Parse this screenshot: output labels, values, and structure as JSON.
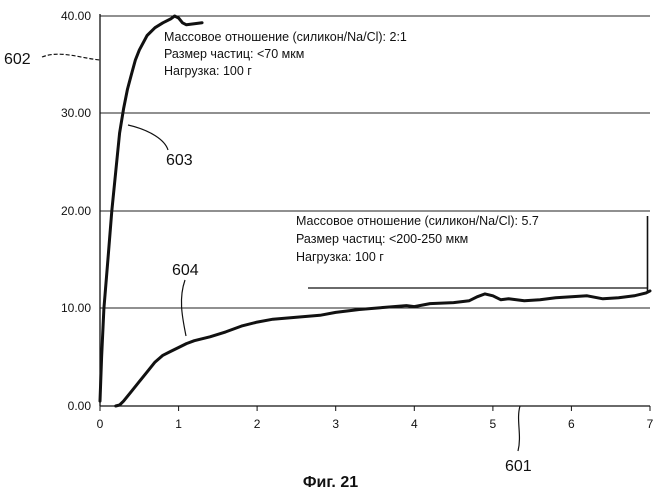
{
  "figure": {
    "caption": "Фиг. 21"
  },
  "chart_data": {
    "type": "line",
    "x_ticks": [
      "0",
      "1",
      "2",
      "3",
      "4",
      "5",
      "6",
      "7"
    ],
    "y_ticks": [
      "0.00",
      "10.00",
      "20.00",
      "30.00",
      "40.00"
    ],
    "xlim": [
      0,
      7
    ],
    "ylim": [
      0,
      40
    ],
    "grid": "horizontal",
    "legend": "none",
    "series": [
      {
        "ref": "602",
        "color": "#111111",
        "x": [
          0.0,
          0.02,
          0.05,
          0.1,
          0.15,
          0.2,
          0.25,
          0.3,
          0.35,
          0.4,
          0.45,
          0.5,
          0.6,
          0.7,
          0.8,
          0.9,
          0.95,
          1.0,
          1.05,
          1.1,
          1.2,
          1.3
        ],
        "y": [
          0.5,
          5,
          10,
          15,
          20,
          24,
          28,
          30.5,
          32.5,
          34,
          35.5,
          36.5,
          38,
          38.8,
          39.3,
          39.7,
          40,
          39.8,
          39.3,
          39.1,
          39.2,
          39.3
        ]
      },
      {
        "ref": "601",
        "color": "#111111",
        "x": [
          0.2,
          0.25,
          0.3,
          0.4,
          0.5,
          0.6,
          0.7,
          0.8,
          0.9,
          1.0,
          1.1,
          1.2,
          1.4,
          1.6,
          1.8,
          2.0,
          2.2,
          2.5,
          2.8,
          3.0,
          3.3,
          3.6,
          3.9,
          4.0,
          4.2,
          4.5,
          4.7,
          4.8,
          4.9,
          5.0,
          5.1,
          5.2,
          5.4,
          5.6,
          5.8,
          6.0,
          6.2,
          6.4,
          6.6,
          6.8,
          6.95,
          7.0
        ],
        "y": [
          0,
          0.1,
          0.5,
          1.5,
          2.5,
          3.5,
          4.5,
          5.2,
          5.6,
          6.0,
          6.4,
          6.7,
          7.1,
          7.6,
          8.2,
          8.6,
          8.9,
          9.1,
          9.3,
          9.6,
          9.9,
          10.1,
          10.3,
          10.2,
          10.5,
          10.6,
          10.8,
          11.2,
          11.5,
          11.3,
          10.9,
          11.0,
          10.8,
          10.9,
          11.1,
          11.2,
          11.3,
          11.0,
          11.1,
          11.3,
          11.6,
          11.8
        ]
      }
    ],
    "annotations": [
      {
        "lines": [
          "Массовое отношение (силикон/Na/Cl): 2:1",
          "Размер частиц: <70 мкм",
          "Нагрузка: 100 г"
        ]
      },
      {
        "lines": [
          "Массовое отношение (силикон/Na/Cl): 5.7",
          "Размер частиц: <200-250 мкм",
          "Нагрузка: 100 г"
        ]
      }
    ],
    "reference_labels": [
      "602",
      "603",
      "604",
      "601"
    ]
  }
}
